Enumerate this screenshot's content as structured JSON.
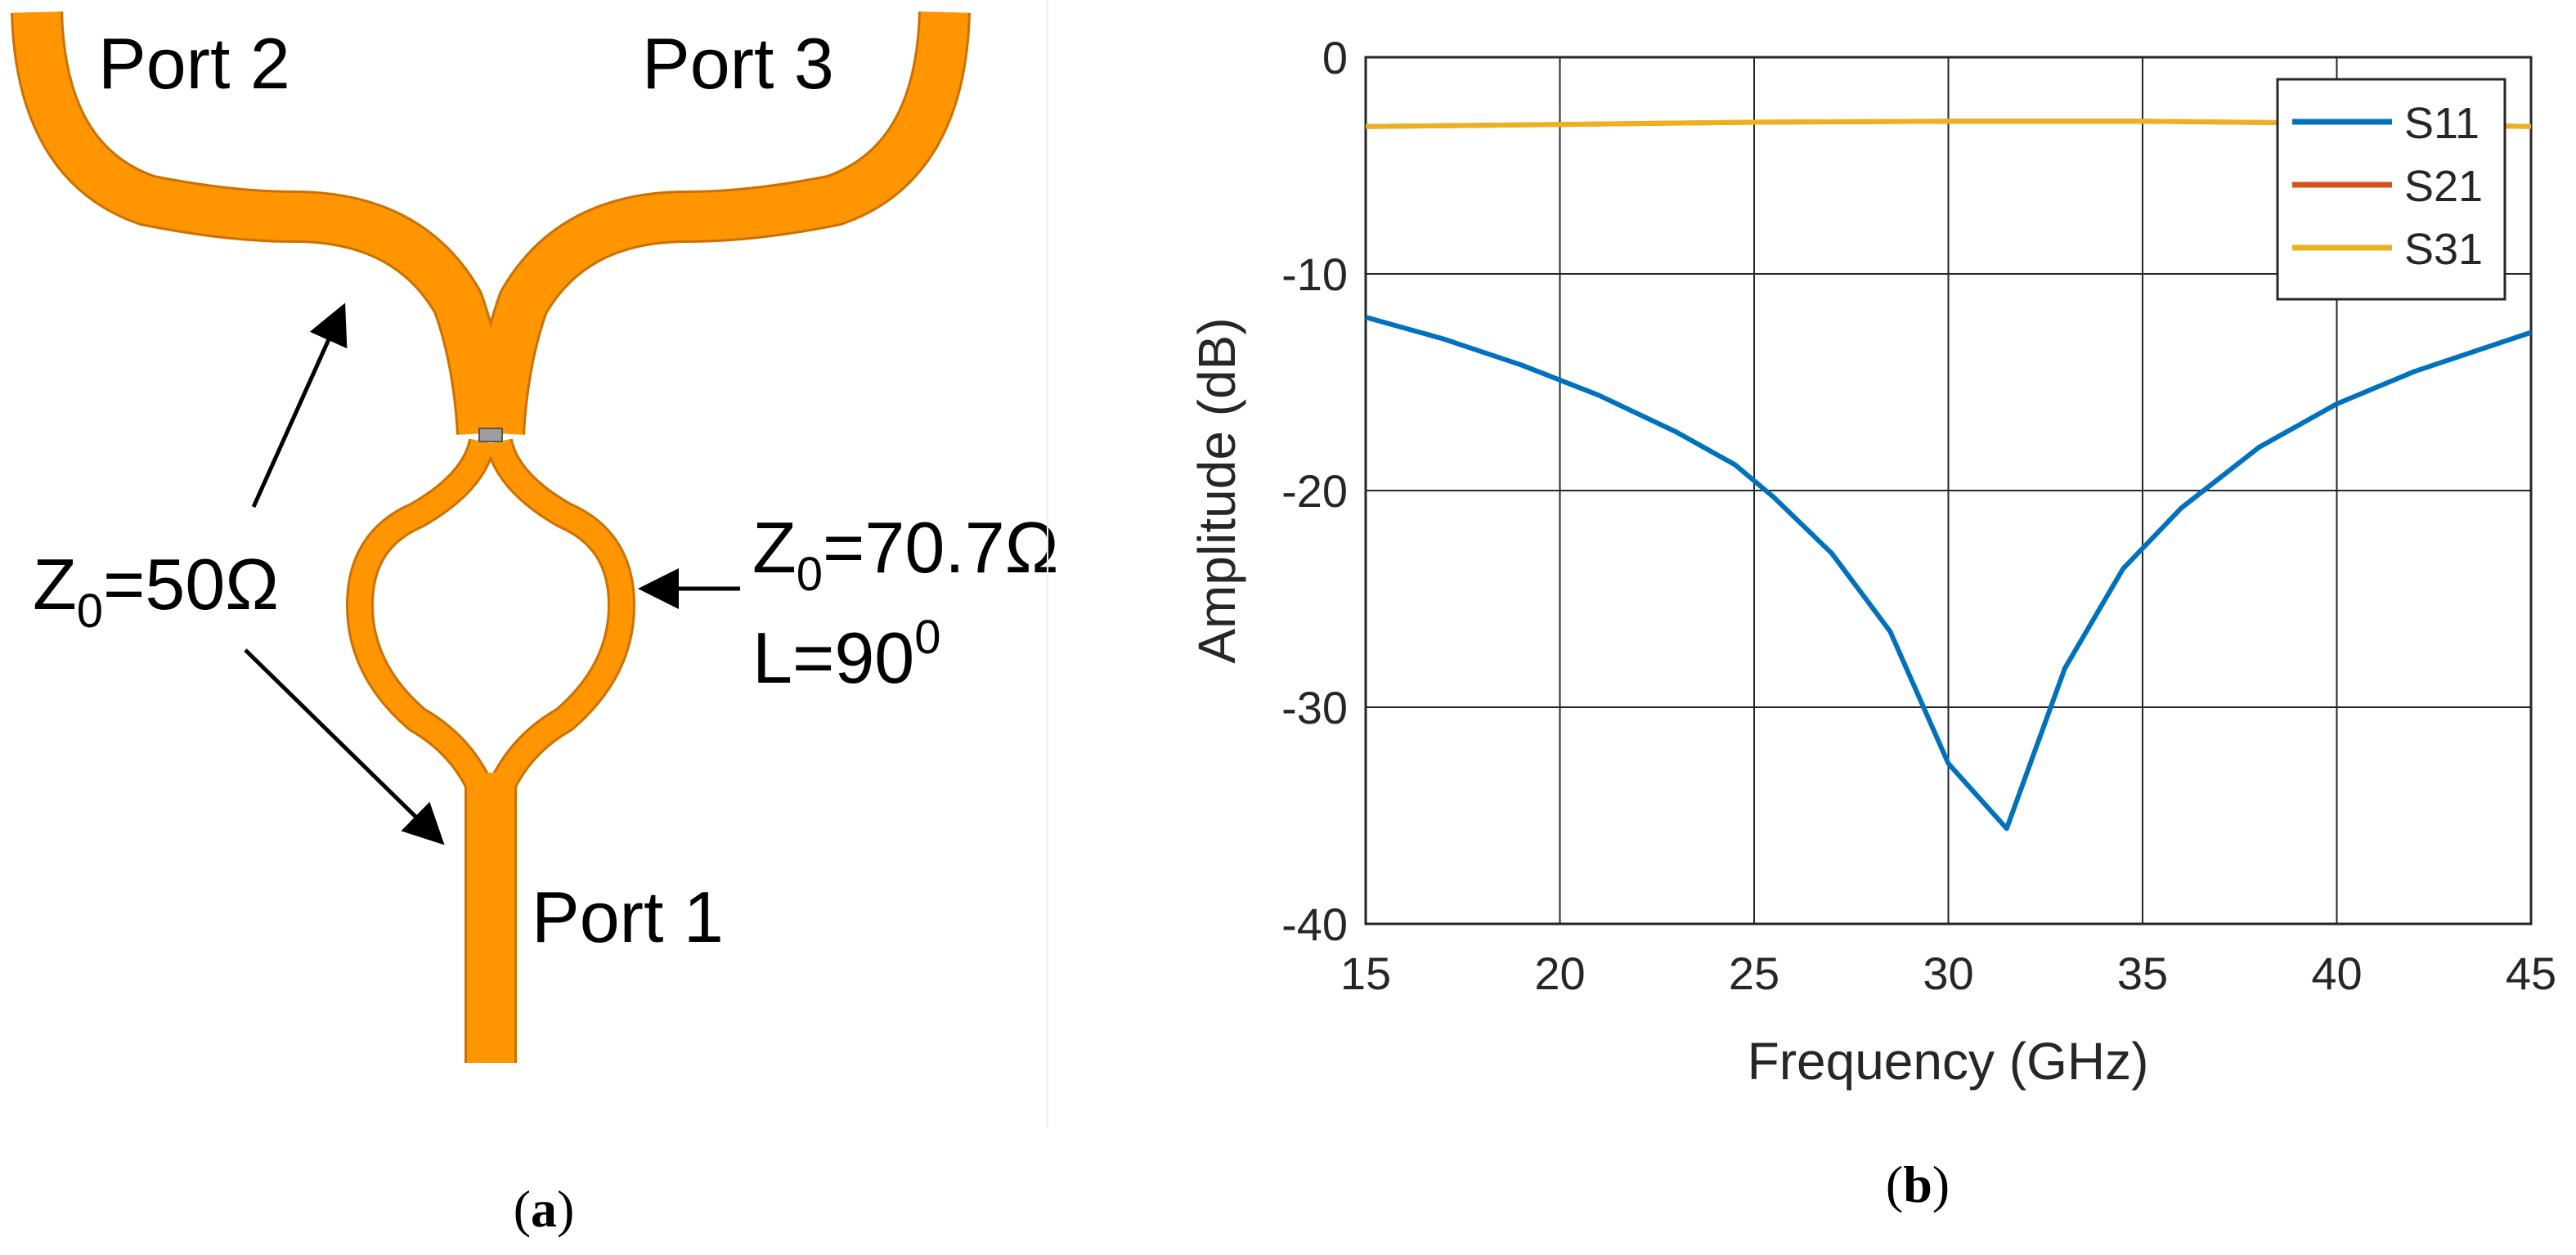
{
  "panel_a": {
    "caption_open": "(",
    "caption_letter": "a",
    "caption_close": ")",
    "port2": "Port 2",
    "port3": "Port 3",
    "port1": "Port 1",
    "z50_pre": "Z",
    "z50_sub": "0",
    "z50_post": "=50Ω",
    "z70_pre": "Z",
    "z70_sub": "0",
    "z70_post": "=70.7Ω",
    "len_pre": "L=90",
    "len_sup": "0",
    "colors": {
      "microstrip": "#FF9500",
      "microstrip_edge": "#CC7000",
      "arrow": "#000000"
    }
  },
  "panel_b": {
    "caption_open": "(",
    "caption_letter": "b",
    "caption_close": ")"
  },
  "chart_data": {
    "type": "line",
    "xlabel": "Frequency (GHz)",
    "ylabel": "Amplitude (dB)",
    "xlim": [
      15,
      45
    ],
    "ylim": [
      -40,
      0
    ],
    "xticks": [
      15,
      20,
      25,
      30,
      35,
      40,
      45
    ],
    "yticks": [
      0,
      -10,
      -20,
      -30,
      -40
    ],
    "grid": true,
    "legend_position": "top-right",
    "series": [
      {
        "name": "S11",
        "color": "#0072BD",
        "x": [
          15,
          17,
          19,
          21,
          23,
          24.5,
          25.5,
          27,
          28.5,
          30,
          31.5,
          33,
          34.5,
          36,
          38,
          40,
          42,
          44,
          45
        ],
        "y": [
          -12.0,
          -13.0,
          -14.2,
          -15.6,
          -17.3,
          -18.8,
          -20.3,
          -22.9,
          -26.5,
          -32.6,
          -35.6,
          -28.2,
          -23.6,
          -20.8,
          -18.0,
          -16.0,
          -14.5,
          -13.3,
          -12.7
        ]
      },
      {
        "name": "S21",
        "color": "#D95319",
        "x": [
          15,
          20,
          25,
          30,
          35,
          40,
          45
        ],
        "y": [
          -3.2,
          -3.1,
          -3.0,
          -2.95,
          -2.95,
          -3.05,
          -3.2
        ]
      },
      {
        "name": "S31",
        "color": "#EDB120",
        "x": [
          15,
          20,
          25,
          30,
          35,
          40,
          45
        ],
        "y": [
          -3.2,
          -3.1,
          -3.0,
          -2.95,
          -2.95,
          -3.05,
          -3.2
        ]
      }
    ]
  }
}
